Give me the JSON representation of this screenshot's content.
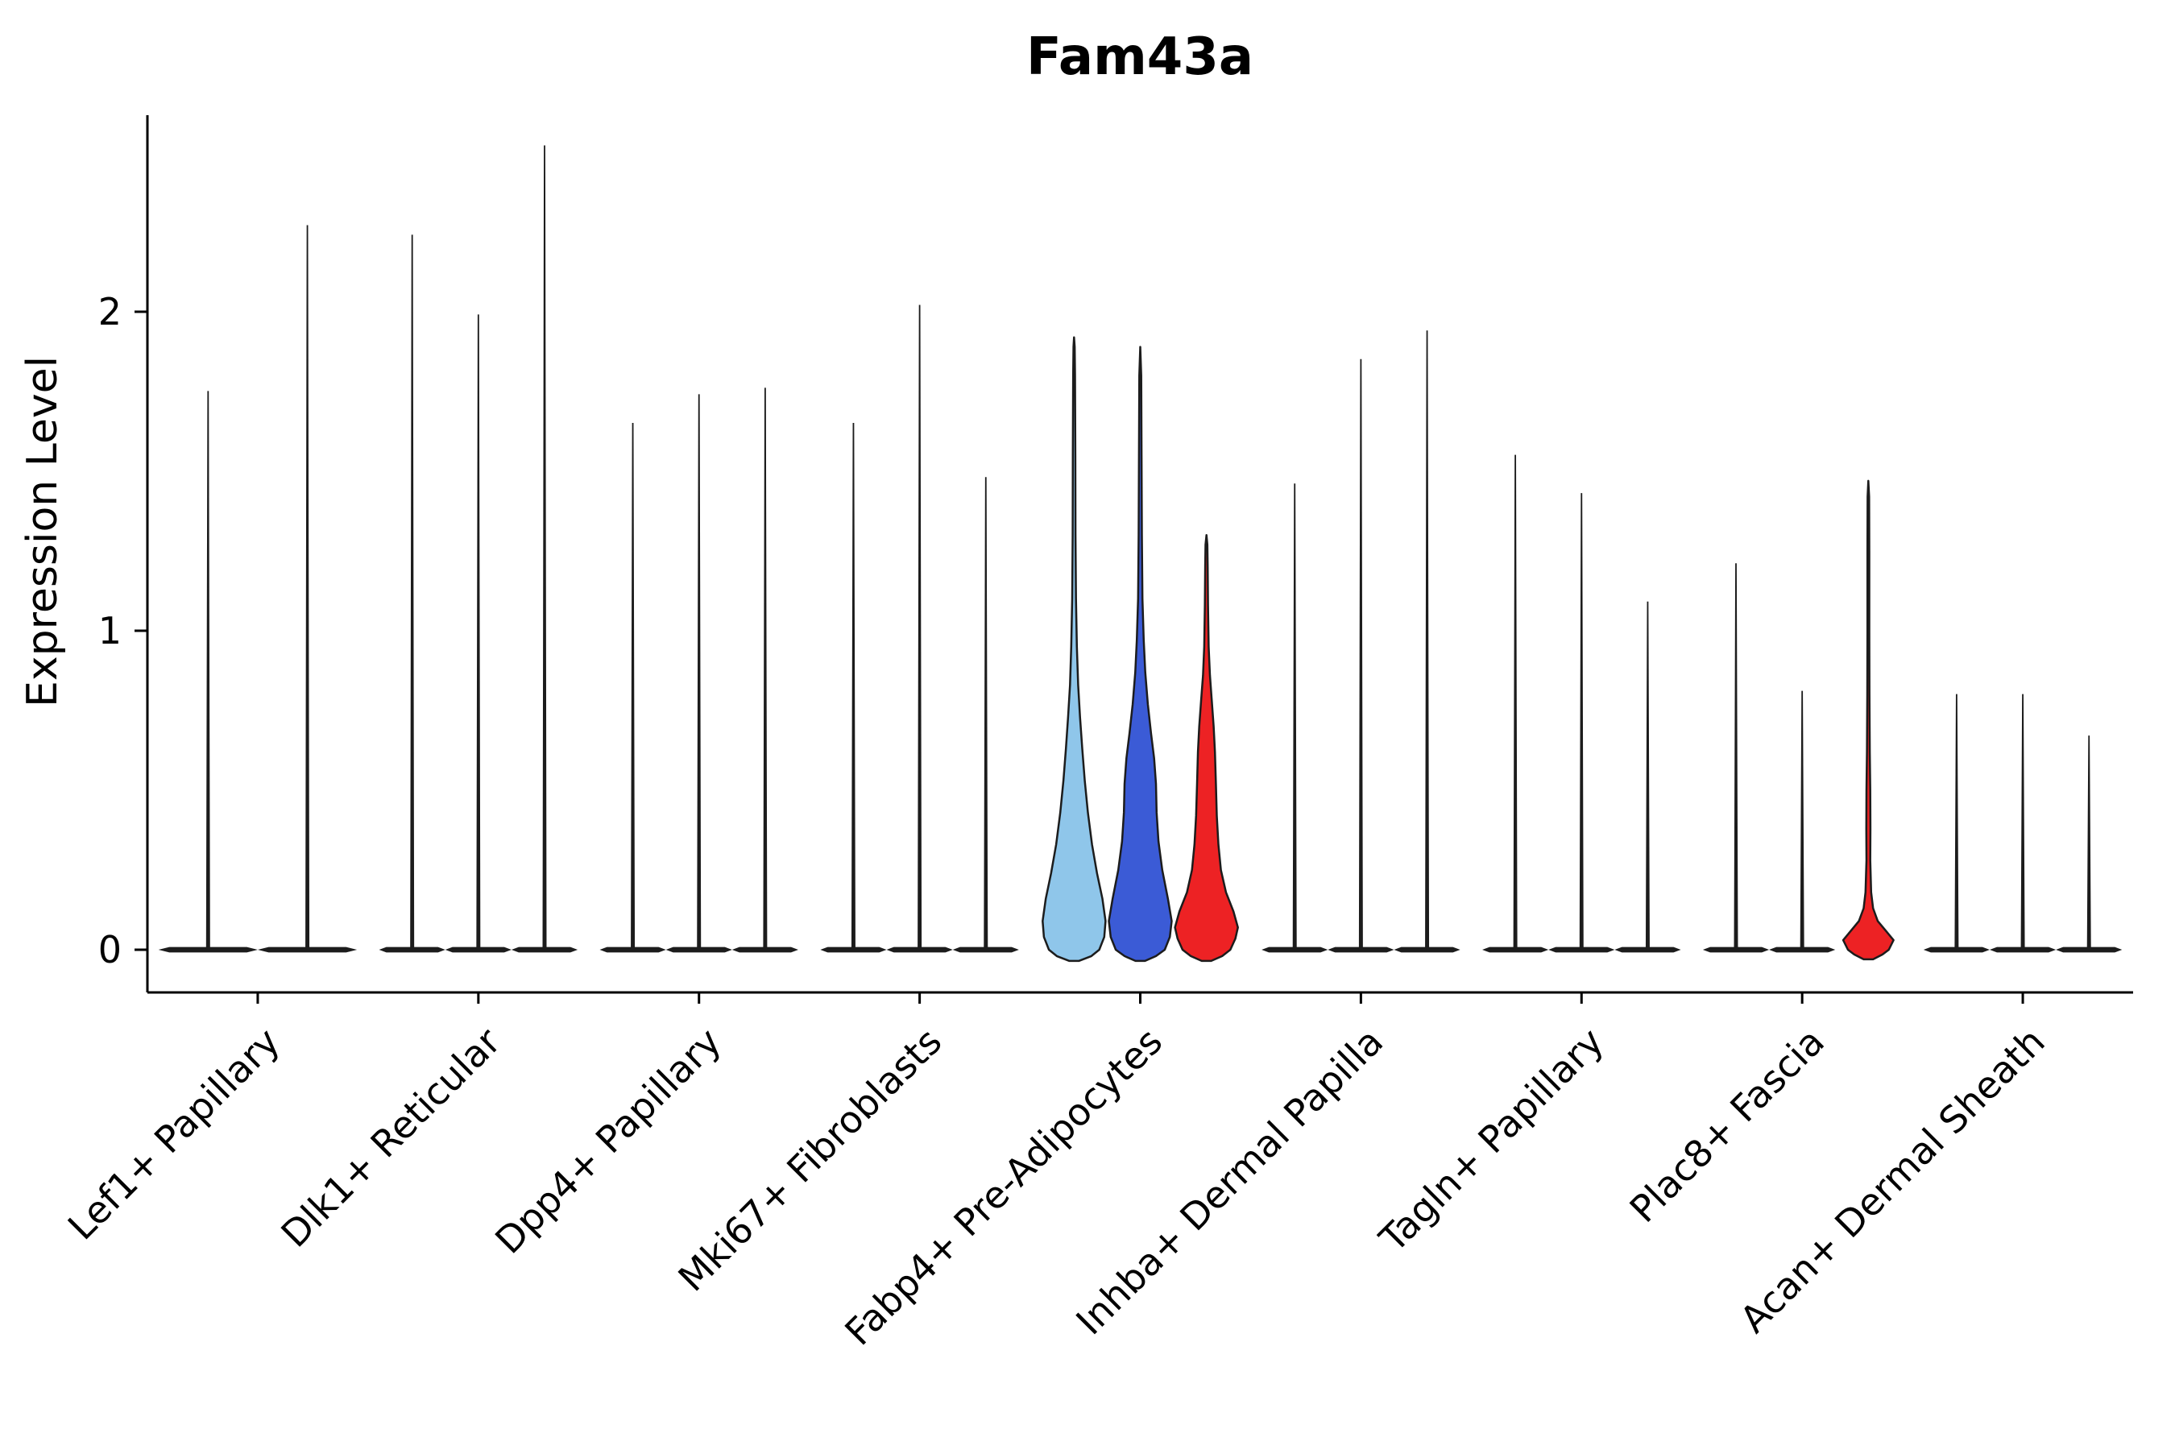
{
  "chart_data": {
    "type": "violin",
    "title": "Fam43a",
    "ylabel": "Expression Level",
    "xlabel": "",
    "yticks": [
      0,
      1,
      2
    ],
    "ylim": [
      -0.13,
      2.62
    ],
    "grid": false,
    "legend": null,
    "x_tick_rotation": 45,
    "colors": {
      "light_blue": "#8FC6EA",
      "blue": "#3B5BD6",
      "red": "#ED2224",
      "outline": "#1c1c1c"
    },
    "groups": [
      {
        "label": "Lef1+ Papillary",
        "violins": [
          {
            "kind": "spike",
            "max": 1.75
          },
          {
            "kind": "spike",
            "max": 2.27
          }
        ]
      },
      {
        "label": "Dlk1+ Reticular",
        "violins": [
          {
            "kind": "spike",
            "max": 2.24
          },
          {
            "kind": "spike",
            "max": 1.99
          },
          {
            "kind": "spike",
            "max": 2.52
          }
        ]
      },
      {
        "label": "Dpp4+ Papillary",
        "violins": [
          {
            "kind": "spike",
            "max": 1.65
          },
          {
            "kind": "spike",
            "max": 1.74
          },
          {
            "kind": "spike",
            "max": 1.76
          }
        ]
      },
      {
        "label": "Mki67+ Fibroblasts",
        "violins": [
          {
            "kind": "spike",
            "max": 1.65
          },
          {
            "kind": "spike",
            "max": 2.02
          },
          {
            "kind": "spike",
            "max": 1.48
          }
        ]
      },
      {
        "label": "Fabp4+ Pre-Adipocytes",
        "violins": [
          {
            "kind": "body",
            "fill": "#8FC6EA",
            "max": 1.92,
            "profile": [
              [
                -0.035,
                0.15
              ],
              [
                -0.02,
                0.55
              ],
              [
                0,
                0.8
              ],
              [
                0.04,
                0.96
              ],
              [
                0.09,
                1.0
              ],
              [
                0.16,
                0.9
              ],
              [
                0.24,
                0.73
              ],
              [
                0.33,
                0.57
              ],
              [
                0.43,
                0.44
              ],
              [
                0.53,
                0.34
              ],
              [
                0.63,
                0.26
              ],
              [
                0.73,
                0.19
              ],
              [
                0.83,
                0.13
              ],
              [
                0.95,
                0.09
              ],
              [
                1.1,
                0.06
              ],
              [
                1.3,
                0.045
              ],
              [
                1.55,
                0.04
              ],
              [
                1.8,
                0.03
              ],
              [
                1.89,
                0.02
              ],
              [
                1.92,
                0
              ]
            ]
          },
          {
            "kind": "body",
            "fill": "#3B5BD6",
            "max": 1.89,
            "profile": [
              [
                -0.035,
                0.15
              ],
              [
                -0.02,
                0.5
              ],
              [
                0,
                0.78
              ],
              [
                0.04,
                0.94
              ],
              [
                0.09,
                1.0
              ],
              [
                0.16,
                0.88
              ],
              [
                0.25,
                0.7
              ],
              [
                0.34,
                0.58
              ],
              [
                0.43,
                0.52
              ],
              [
                0.52,
                0.5
              ],
              [
                0.6,
                0.44
              ],
              [
                0.68,
                0.34
              ],
              [
                0.77,
                0.24
              ],
              [
                0.87,
                0.16
              ],
              [
                0.97,
                0.11
              ],
              [
                1.1,
                0.07
              ],
              [
                1.3,
                0.05
              ],
              [
                1.55,
                0.04
              ],
              [
                1.8,
                0.03
              ],
              [
                1.89,
                0
              ]
            ]
          },
          {
            "kind": "body",
            "fill": "#ED2224",
            "max": 1.3,
            "profile": [
              [
                -0.035,
                0.15
              ],
              [
                -0.02,
                0.5
              ],
              [
                0,
                0.76
              ],
              [
                0.035,
                0.92
              ],
              [
                0.07,
                1.0
              ],
              [
                0.12,
                0.86
              ],
              [
                0.18,
                0.62
              ],
              [
                0.25,
                0.46
              ],
              [
                0.33,
                0.38
              ],
              [
                0.42,
                0.33
              ],
              [
                0.52,
                0.3
              ],
              [
                0.62,
                0.27
              ],
              [
                0.7,
                0.23
              ],
              [
                0.78,
                0.17
              ],
              [
                0.86,
                0.11
              ],
              [
                0.95,
                0.07
              ],
              [
                1.08,
                0.05
              ],
              [
                1.2,
                0.04
              ],
              [
                1.27,
                0.03
              ],
              [
                1.3,
                0
              ]
            ]
          }
        ]
      },
      {
        "label": "Inhba+ Dermal Papilla",
        "violins": [
          {
            "kind": "spike",
            "max": 1.46
          },
          {
            "kind": "spike",
            "max": 1.85
          },
          {
            "kind": "spike",
            "max": 1.94
          }
        ]
      },
      {
        "label": "Tagln+ Papillary",
        "violins": [
          {
            "kind": "spike",
            "max": 1.55
          },
          {
            "kind": "spike",
            "max": 1.43
          },
          {
            "kind": "spike",
            "max": 1.09
          }
        ]
      },
      {
        "label": "Plac8+ Fascia",
        "violins": [
          {
            "kind": "spike",
            "max": 1.21
          },
          {
            "kind": "spike",
            "max": 0.81
          },
          {
            "kind": "body",
            "fill": "#ED2224",
            "max": 1.47,
            "profile": [
              [
                -0.03,
                0.15
              ],
              [
                -0.015,
                0.45
              ],
              [
                0,
                0.65
              ],
              [
                0.03,
                0.8
              ],
              [
                0.06,
                0.55
              ],
              [
                0.09,
                0.3
              ],
              [
                0.13,
                0.15
              ],
              [
                0.18,
                0.09
              ],
              [
                0.28,
                0.06
              ],
              [
                0.38,
                0.065
              ],
              [
                0.5,
                0.06
              ],
              [
                0.62,
                0.045
              ],
              [
                0.8,
                0.035
              ],
              [
                1.0,
                0.03
              ],
              [
                1.25,
                0.03
              ],
              [
                1.42,
                0.025
              ],
              [
                1.47,
                0
              ]
            ]
          }
        ]
      },
      {
        "label": "Acan+ Dermal Sheath",
        "violins": [
          {
            "kind": "spike",
            "max": 0.8
          },
          {
            "kind": "spike",
            "max": 0.8
          },
          {
            "kind": "spike",
            "max": 0.67
          }
        ]
      }
    ]
  }
}
